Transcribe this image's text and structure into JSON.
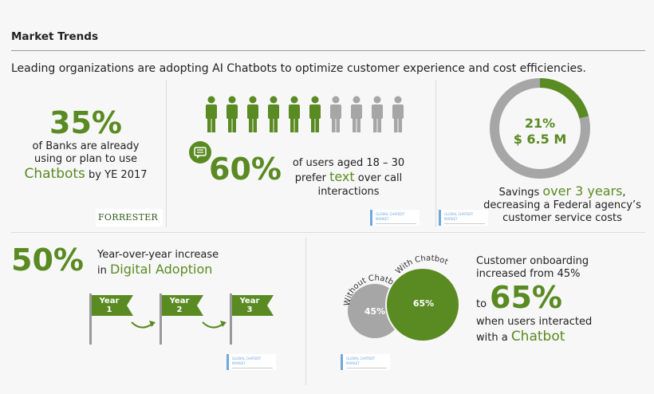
{
  "header": {
    "title": "Market Trends",
    "subtitle": "Leading organizations are adopting AI Chatbots to optimize customer experience and cost efficiencies."
  },
  "panel1": {
    "stat": "35%",
    "line1": "of Banks are already",
    "line2": "using or plan to use",
    "highlight": "Chatbots",
    "line3_rest": " by YE 2017",
    "logo": "FORRESTER"
  },
  "panel2": {
    "stat": "60%",
    "line1": "of users aged 18 – 30",
    "line2_pre": "prefer ",
    "highlight": "text",
    "line2_post": " over call",
    "line3": "interactions",
    "people_total": 10,
    "people_highlighted": 6,
    "icon": "chat-bubble-icon",
    "thumb_label": "GLOBAL CHATBOT MARKET"
  },
  "panel3": {
    "percent": "21%",
    "amount": "$ 6.5 M",
    "ring_fraction": 0.21,
    "line1_pre": "Savings ",
    "highlight": "over 3 years",
    "line1_post": ",",
    "line2": "decreasing a Federal agency’s",
    "line3": "customer service costs",
    "thumb_label": "GLOBAL CHATBOT MARKET"
  },
  "panel4": {
    "stat": "50%",
    "line1": "Year-over-year increase",
    "line2_pre": "in ",
    "highlight": "Digital Adoption",
    "flags": [
      {
        "word": "Year",
        "num": "1"
      },
      {
        "word": "Year",
        "num": "2"
      },
      {
        "word": "Year",
        "num": "3"
      }
    ],
    "thumb_label": "GLOBAL CHATBOT MARKET"
  },
  "panel5": {
    "without_label": "Without Chatbot",
    "with_label": "With Chatbot",
    "without_value": "45%",
    "with_value": "65%",
    "line1": "Customer onboarding",
    "line2": "increased from 45%",
    "to_word": "to",
    "stat": "65%",
    "line3": "when users interacted",
    "line4_pre": "with a ",
    "highlight": "Chatbot",
    "thumb_label": "GLOBAL CHATBOT MARKET"
  },
  "colors": {
    "accent": "#5a8a22",
    "grey": "#a6a6a6"
  }
}
